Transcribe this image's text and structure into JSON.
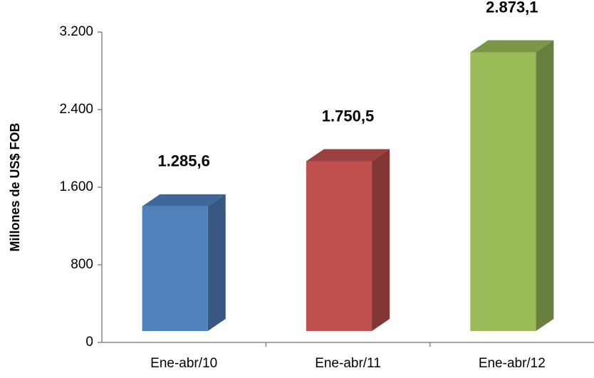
{
  "chart_data": {
    "type": "bar3d",
    "y_label": "Millones de US$ FOB",
    "categories": [
      "Ene-abr/10",
      "Ene-abr/11",
      "Ene-abr/12"
    ],
    "values": [
      1285.6,
      1750.5,
      2873.1
    ],
    "value_labels": [
      "1.285,6",
      "1.750,5",
      "2.873,1"
    ],
    "colors": [
      "#4f81bd",
      "#c0504d",
      "#9bbb59"
    ],
    "ylim": [
      0,
      3200
    ],
    "yticks": [
      0,
      800,
      {
        "value": 1600,
        "label": "1.600"
      },
      {
        "value": 2400,
        "label": "2.400"
      },
      {
        "value": 3200,
        "label": "3.200"
      }
    ],
    "grid": false
  }
}
